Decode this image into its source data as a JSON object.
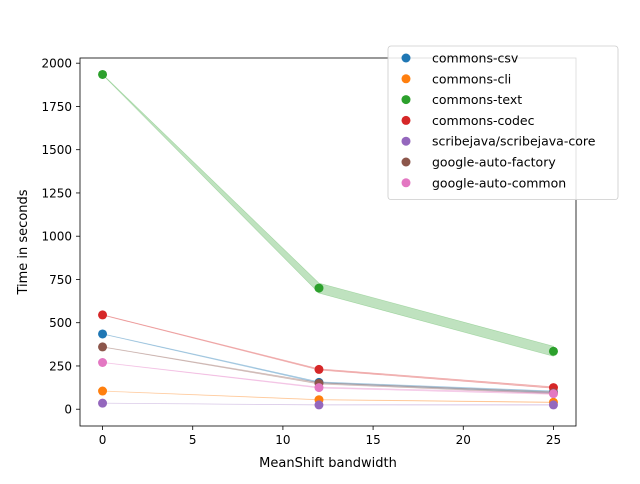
{
  "chart_data": {
    "type": "scatter",
    "title": "",
    "xlabel": "MeanShift bandwidth",
    "ylabel": "Time in seconds",
    "xlim": [
      -1.25,
      26.25
    ],
    "ylim": [
      -97,
      2030
    ],
    "x_ticks": [
      0,
      5,
      10,
      15,
      20,
      25
    ],
    "y_ticks": [
      0,
      250,
      500,
      750,
      1000,
      1250,
      1500,
      1750,
      2000
    ],
    "grid": false,
    "legend_position": "top-right",
    "x": [
      0,
      12,
      25
    ],
    "series": [
      {
        "name": "commons-csv",
        "color": "#1f77b4",
        "values": [
          435,
          155,
          100
        ]
      },
      {
        "name": "commons-cli",
        "color": "#ff7f0e",
        "values": [
          105,
          55,
          40
        ]
      },
      {
        "name": "commons-text",
        "color": "#2ca02c",
        "values": [
          1935,
          700,
          335
        ]
      },
      {
        "name": "commons-codec",
        "color": "#d62728",
        "values": [
          545,
          230,
          125
        ]
      },
      {
        "name": "scribejava/scribejava-core",
        "color": "#9467bd",
        "values": [
          35,
          25,
          25
        ]
      },
      {
        "name": "google-auto-factory",
        "color": "#8c564b",
        "values": [
          360,
          150,
          95
        ]
      },
      {
        "name": "google-auto-common",
        "color": "#e377c2",
        "values": [
          270,
          125,
          90
        ]
      }
    ],
    "band_widths": [
      [
        0.3,
        1.2,
        2.0
      ],
      [
        0.2,
        0.4,
        0.6
      ],
      [
        0.5,
        10,
        10
      ],
      [
        0.5,
        1.2,
        1.5
      ],
      [
        0.1,
        0.3,
        0.4
      ],
      [
        0.3,
        1.5,
        2.0
      ],
      [
        0.3,
        1.0,
        1.5
      ]
    ]
  }
}
